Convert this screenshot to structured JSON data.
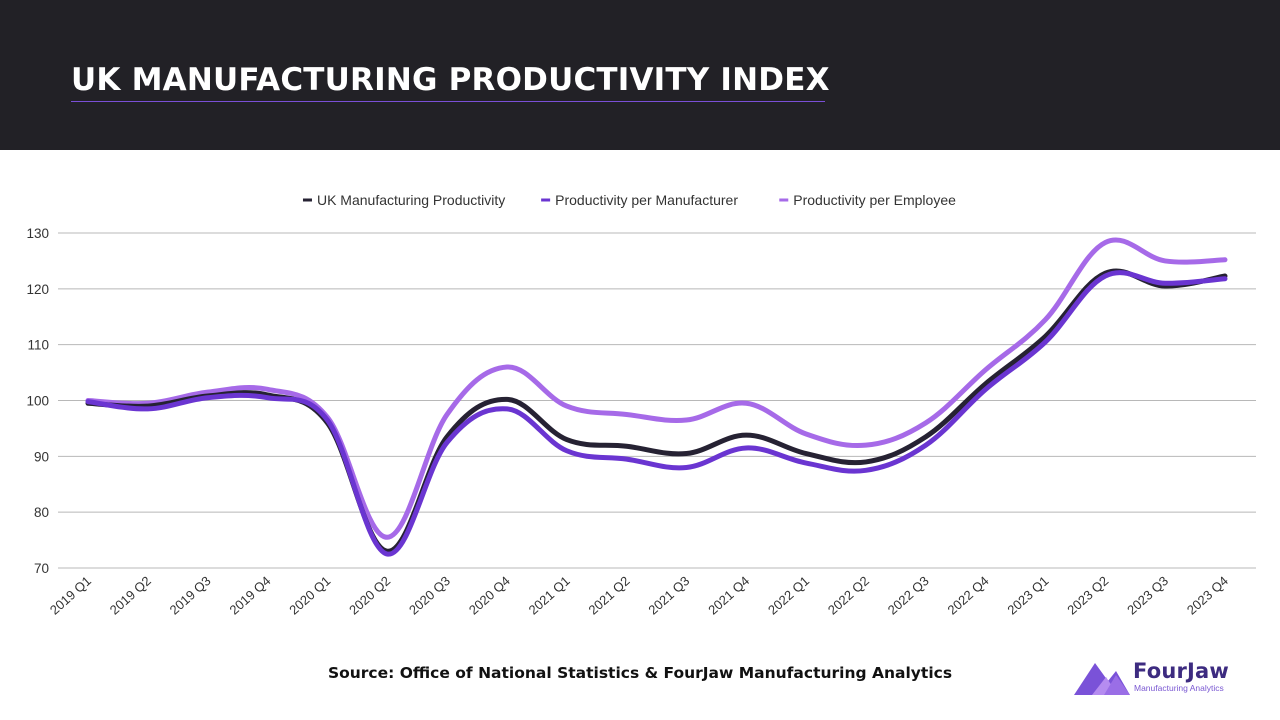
{
  "header": {
    "title": "UK MANUFACTURING PRODUCTIVITY INDEX"
  },
  "source": "Source: Office of National Statistics & FourJaw Manufacturing Analytics",
  "logo": {
    "name": "FourJaw",
    "tagline": "Manufacturing Analytics"
  },
  "colors": {
    "header_bg": "#222126",
    "title_underline": "#7a4fd6",
    "series_uk": "#262233",
    "series_manufacturer": "#6a35d1",
    "series_employee": "#a66ae8",
    "logo_main": "#7a52d8",
    "logo_light": "#b58cf0"
  },
  "chart_data": {
    "type": "line",
    "title": "",
    "xlabel": "",
    "ylabel": "",
    "ylim": [
      70,
      130
    ],
    "yticks": [
      70,
      80,
      90,
      100,
      110,
      120,
      130
    ],
    "legend_position": "top-center",
    "grid": true,
    "categories": [
      "2019 Q1",
      "2019 Q2",
      "2019 Q3",
      "2019 Q4",
      "2020 Q1",
      "2020 Q2",
      "2020 Q3",
      "2020 Q4",
      "2021 Q1",
      "2021 Q2",
      "2021 Q3",
      "2021 Q4",
      "2022 Q1",
      "2022 Q2",
      "2022 Q3",
      "2022 Q4",
      "2023 Q1",
      "2023 Q2",
      "2023 Q3",
      "2023 Q4"
    ],
    "series": [
      {
        "name": "UK Manufacturing Productivity",
        "color": "#262233",
        "values": [
          99.5,
          99.0,
          100.8,
          101.0,
          96.0,
          73.0,
          93.5,
          100.2,
          93.0,
          91.8,
          90.5,
          93.8,
          90.5,
          89.0,
          93.5,
          103.0,
          111.5,
          122.8,
          120.5,
          122.3
        ]
      },
      {
        "name": "Productivity per Manufacturer",
        "color": "#6a35d1",
        "values": [
          99.8,
          98.5,
          100.5,
          100.5,
          96.5,
          72.5,
          92.5,
          98.5,
          91.0,
          89.5,
          88.0,
          91.5,
          88.8,
          87.5,
          92.0,
          102.0,
          110.5,
          122.3,
          121.0,
          121.8
        ]
      },
      {
        "name": "Productivity per Employee",
        "color": "#a66ae8",
        "values": [
          100.0,
          99.5,
          101.5,
          102.0,
          97.0,
          75.5,
          97.5,
          106.0,
          99.0,
          97.5,
          96.5,
          99.5,
          94.0,
          92.0,
          96.0,
          105.5,
          114.5,
          128.3,
          125.0,
          125.2
        ]
      }
    ]
  }
}
